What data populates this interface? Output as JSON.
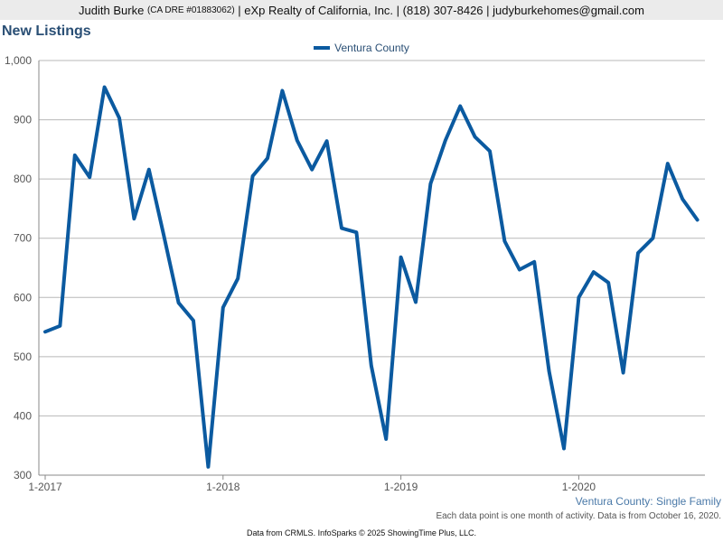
{
  "header": {
    "agent_name": "Judith Burke",
    "license": "(CA DRE #01883062)",
    "rest": "| eXp Realty of California, Inc. | (818) 307-8426 | judyburkehomes@gmail.com"
  },
  "footer": {
    "series_caption": "Ventura County: Single Family",
    "note": "Each data point is one month of activity. Data is from October 16, 2020.",
    "credits": "Data from CRMLS. InfoSparks © 2025 ShowingTime Plus, LLC."
  },
  "colors": {
    "series": "#0b5aa0",
    "grid": "#b8b8b8",
    "title": "#2a4f75"
  },
  "chart_data": {
    "type": "line",
    "title": "New Listings",
    "xlabel": "",
    "ylabel": "",
    "ylim": [
      300,
      1000
    ],
    "yticks": [
      300,
      400,
      500,
      600,
      700,
      800,
      900,
      1000
    ],
    "ytick_labels": [
      "300",
      "400",
      "500",
      "600",
      "700",
      "800",
      "900",
      "1,000"
    ],
    "xticks": [
      "1-2017",
      "1-2018",
      "1-2019",
      "1-2020"
    ],
    "grid": true,
    "legend": "top-center",
    "series": [
      {
        "name": "Ventura County",
        "x": [
          "2017-01",
          "2017-02",
          "2017-03",
          "2017-04",
          "2017-05",
          "2017-06",
          "2017-07",
          "2017-08",
          "2017-09",
          "2017-10",
          "2017-11",
          "2017-12",
          "2018-01",
          "2018-02",
          "2018-03",
          "2018-04",
          "2018-05",
          "2018-06",
          "2018-07",
          "2018-08",
          "2018-09",
          "2018-10",
          "2018-11",
          "2018-12",
          "2019-01",
          "2019-02",
          "2019-03",
          "2019-04",
          "2019-05",
          "2019-06",
          "2019-07",
          "2019-08",
          "2019-09",
          "2019-10",
          "2019-11",
          "2019-12",
          "2020-01",
          "2020-02",
          "2020-03",
          "2020-04",
          "2020-05",
          "2020-06",
          "2020-07",
          "2020-08",
          "2020-09"
        ],
        "values": [
          542,
          552,
          840,
          803,
          955,
          903,
          733,
          816,
          705,
          591,
          561,
          314,
          583,
          632,
          805,
          835,
          949,
          865,
          816,
          864,
          717,
          710,
          485,
          361,
          668,
          592,
          792,
          865,
          923,
          871,
          847,
          695,
          647,
          660,
          475,
          345,
          600,
          643,
          625,
          473,
          675,
          700,
          826,
          766,
          731
        ]
      }
    ]
  }
}
